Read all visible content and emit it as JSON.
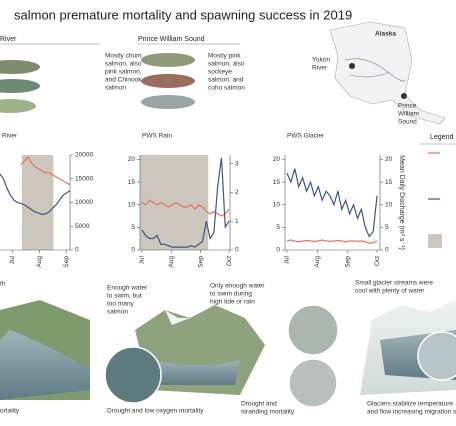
{
  "title": "salmon premature mortality and spawning success in 2019",
  "regions": [
    {
      "name": "River",
      "description": [
        "Mostly chum",
        "salmon, also",
        "pink salmon,",
        "and Chinook",
        "salmon"
      ]
    },
    {
      "name": "Prince William Sound",
      "description": [
        "Mostly pink",
        "salmon, also",
        "sockeye",
        "salmon, and",
        "coho salmon"
      ]
    }
  ],
  "map": {
    "alaska": "Alaska",
    "yukon": [
      "Yukon",
      "River"
    ],
    "pws": [
      "Prince",
      "William",
      "Sound"
    ]
  },
  "legend_title": "Legend",
  "chart_data": [
    {
      "type": "line",
      "title": "River",
      "x": [
        -14,
        -10,
        -6,
        -2,
        2,
        6,
        10,
        14,
        18,
        22,
        26,
        30,
        34,
        38,
        42,
        46,
        50,
        54,
        58,
        62,
        66
      ],
      "xlim": [
        -14,
        66
      ],
      "xticks": [
        {
          "value": 0,
          "label": "Jul"
        },
        {
          "value": 31,
          "label": "Aug"
        },
        {
          "value": 62,
          "label": "Sep"
        }
      ],
      "ylim": [
        0,
        24
      ],
      "y2lim": [
        0,
        20000
      ],
      "y2ticks": [
        0,
        5000,
        10000,
        15000,
        20000
      ],
      "shade": [
        11,
        47
      ],
      "series": [
        {
          "color": "#e8705f",
          "values": [
            null,
            null,
            null,
            null,
            null,
            null,
            21.5,
            22.5,
            23.5,
            22,
            21,
            20.5,
            20,
            19.5,
            19.5,
            19,
            18.5,
            18,
            17.5,
            17,
            16.5
          ]
        },
        {
          "color": "#3e5583",
          "axis": "y2",
          "values": [
            16000,
            15000,
            13000,
            11500,
            10500,
            10000,
            9800,
            9500,
            9000,
            8500,
            8000,
            7800,
            7500,
            7600,
            8000,
            8800,
            9500,
            10500,
            11500,
            12000,
            12500
          ]
        }
      ]
    },
    {
      "type": "line",
      "title": "PWS Rain",
      "x": [
        0,
        4,
        8,
        12,
        16,
        20,
        24,
        28,
        32,
        36,
        40,
        44,
        48,
        52,
        56,
        60,
        64,
        68,
        72,
        76,
        80,
        84,
        88,
        92
      ],
      "xlim": [
        -2,
        93
      ],
      "xticks": [
        {
          "value": 0,
          "label": "Jul"
        },
        {
          "value": 31,
          "label": "Aug"
        },
        {
          "value": 62,
          "label": "Sep"
        },
        {
          "value": 92,
          "label": "Oct"
        }
      ],
      "ylim": [
        0,
        21
      ],
      "yticks": [
        0,
        5,
        10,
        15,
        20
      ],
      "y2lim": [
        0,
        3.3
      ],
      "y2ticks": [
        0,
        1,
        2,
        3
      ],
      "shade": [
        -2,
        70
      ],
      "series": [
        {
          "color": "#e8705f",
          "values": [
            10.5,
            10,
            11,
            10.5,
            10,
            10.5,
            10,
            9.5,
            10,
            10.5,
            10,
            9.5,
            9.5,
            10,
            9,
            10,
            9.5,
            8.5,
            8,
            8.5,
            8,
            7.5,
            8,
            9
          ]
        },
        {
          "color": "#3e5583",
          "axis": "y2",
          "values": [
            0.7,
            0.5,
            0.4,
            0.4,
            0.5,
            0.2,
            0.2,
            0.15,
            0.1,
            0.1,
            0.1,
            0.1,
            0.1,
            0.15,
            0.1,
            0.2,
            0.3,
            1.0,
            0.4,
            0.6,
            2.2,
            3.2,
            0.8,
            1.0
          ]
        }
      ]
    },
    {
      "type": "line",
      "title": "PWS Glacier",
      "x": [
        0,
        4,
        8,
        12,
        16,
        20,
        24,
        28,
        32,
        36,
        40,
        44,
        48,
        52,
        56,
        60,
        64,
        68,
        72,
        76,
        80,
        84,
        88,
        92
      ],
      "xlim": [
        -2,
        95
      ],
      "xticks": [
        {
          "value": 0,
          "label": "Jul"
        },
        {
          "value": 31,
          "label": "Aug"
        },
        {
          "value": 62,
          "label": "Sep"
        },
        {
          "value": 92,
          "label": "Oct"
        }
      ],
      "ylim": [
        0,
        21
      ],
      "yticks": [
        0,
        5,
        10,
        15,
        20
      ],
      "y2lim": [
        0,
        21
      ],
      "y2ticks": [
        0,
        5,
        10,
        15,
        20
      ],
      "y2label": "Mean Daily Discharge (m³ s⁻¹)",
      "series": [
        {
          "color": "#e8705f",
          "values": [
            2,
            2.2,
            2,
            1.8,
            2,
            2.1,
            2,
            1.9,
            2,
            2.2,
            2,
            1.9,
            2,
            2.1,
            2,
            1.8,
            2,
            2,
            1.9,
            2,
            1.8,
            1.5,
            1.6,
            2
          ]
        },
        {
          "color": "#3e5583",
          "axis": "y2",
          "values": [
            17,
            15,
            18,
            14,
            16,
            13,
            15,
            12,
            14,
            11,
            13,
            12,
            10,
            13,
            9,
            11,
            8,
            10,
            7,
            9,
            5,
            3,
            4,
            12
          ]
        }
      ]
    }
  ],
  "callouts": [
    [
      "th"
    ],
    [
      "Enough water",
      "to swim, but",
      "too many",
      "salmon"
    ],
    [
      "Only enough water",
      "to swim during",
      "high tide or rain"
    ],
    [
      "Small glacier streams were",
      "cool with plenty of water"
    ]
  ],
  "captions": [
    [
      "ortality"
    ],
    [
      "Drought and low oxygen mortality"
    ],
    [
      "Drought and",
      "stranding mortality"
    ],
    [
      "Glaciers stabilize temperature",
      "and flow increasing migration s"
    ]
  ]
}
